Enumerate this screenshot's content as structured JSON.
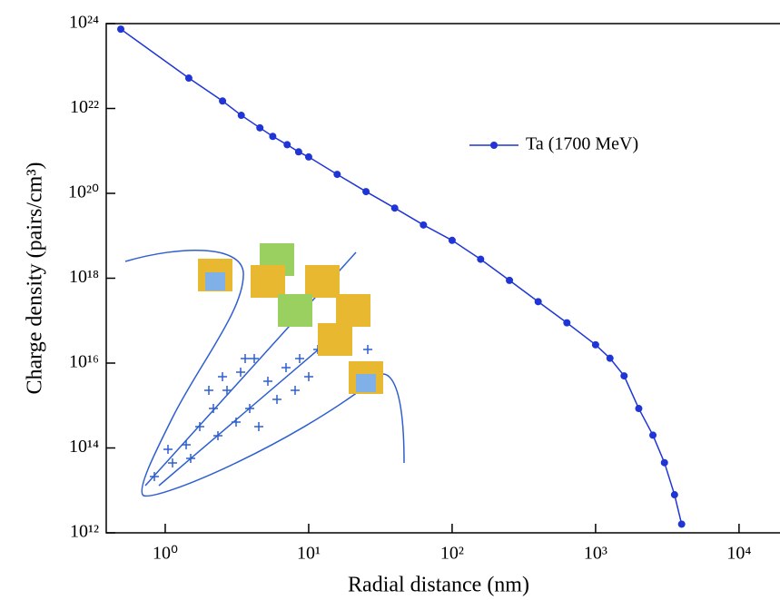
{
  "chart_data": {
    "type": "line",
    "xlabel": "Radial distance (nm)",
    "ylabel": "Charge density (pairs/cm³)",
    "xscale": "log",
    "yscale": "log",
    "xlim": [
      0.388,
      19300
    ],
    "ylim": [
      1000000000000.0,
      1e+24
    ],
    "xticks": [
      {
        "value": 1,
        "label": "10⁰"
      },
      {
        "value": 10,
        "label": "10¹"
      },
      {
        "value": 100,
        "label": "10²"
      },
      {
        "value": 1000,
        "label": "10³"
      },
      {
        "value": 10000,
        "label": "10⁴"
      }
    ],
    "yticks": [
      {
        "value": 1000000000000.0,
        "label": "10¹²"
      },
      {
        "value": 100000000000000.0,
        "label": "10¹⁴"
      },
      {
        "value": 1e+16,
        "label": "10¹⁶"
      },
      {
        "value": 1e+18,
        "label": "10¹⁸"
      },
      {
        "value": 1e+20,
        "label": "10²⁰"
      },
      {
        "value": 1e+22,
        "label": "10²²"
      },
      {
        "value": 1e+24,
        "label": "10²⁴"
      }
    ],
    "legend": "upper right",
    "series": [
      {
        "name": "Ta (1700 MeV)",
        "color": "#1f35d6",
        "x": [
          0.49,
          1.46,
          2.51,
          3.39,
          4.57,
          5.62,
          7.08,
          8.51,
          10,
          15.8,
          25.1,
          39.8,
          63.1,
          100,
          158,
          251,
          398,
          631,
          1000,
          1260,
          1580,
          2000,
          2510,
          3020,
          3550,
          3980
        ],
        "values": [
          7.4e+23,
          5.2e+22,
          1.5e+22,
          6.9e+21,
          3.5e+21,
          2.2e+21,
          1.4e+21,
          9.5e+20,
          7.2e+20,
          2.8e+20,
          1.1e+20,
          4.5e+19,
          1.8e+19,
          7.8e+18,
          2.8e+18,
          8.9e+17,
          2.8e+17,
          8.9e+16,
          2.7e+16,
          1.3e+16,
          5000000000000000.0,
          850000000000000.0,
          200000000000000.0,
          45000000000000.0,
          7900000000000.0,
          1600000000000.0
        ]
      }
    ]
  }
}
